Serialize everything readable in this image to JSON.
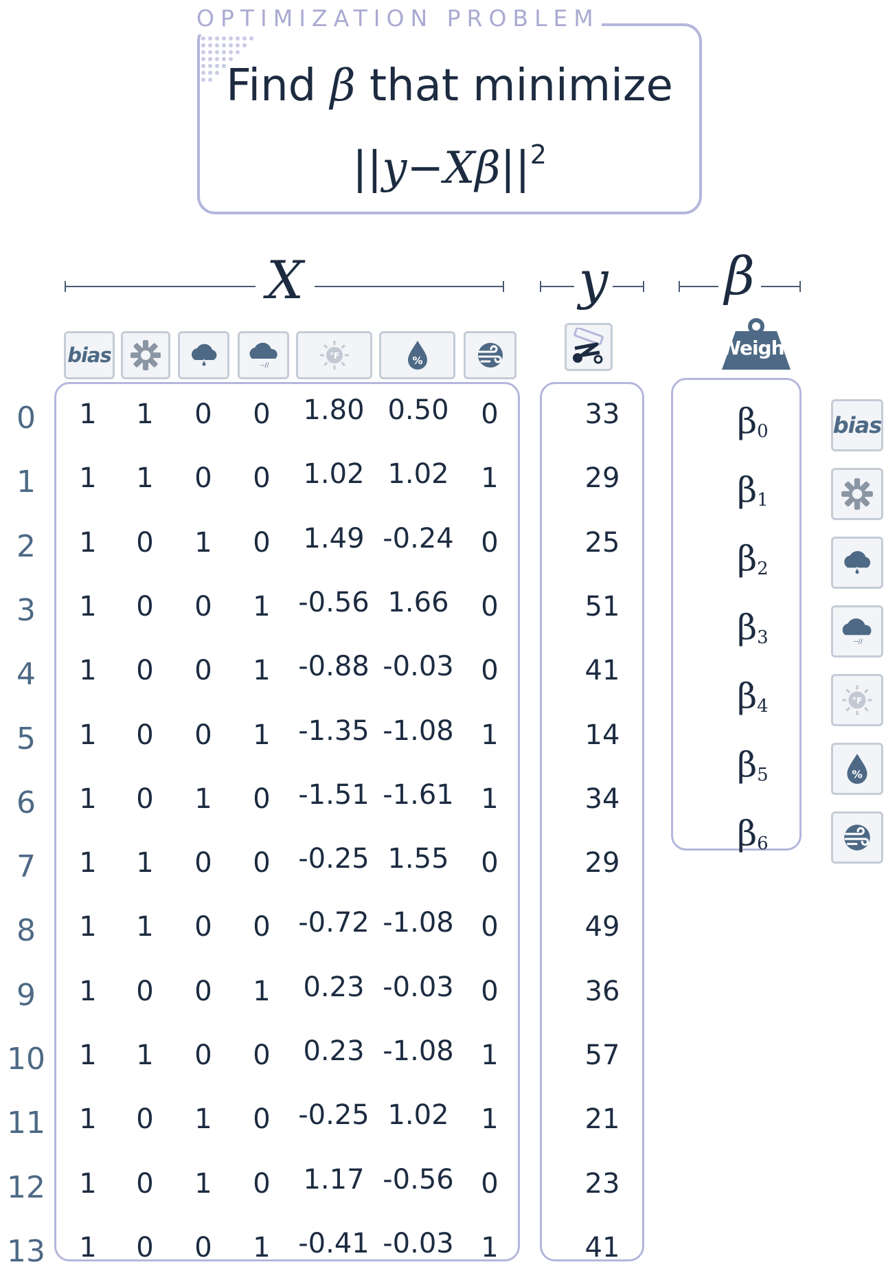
{
  "header": {
    "label": "OPTIMIZATION PROBLEM",
    "line1_pre": "Find ",
    "beta_symbol": "β",
    "line1_post": " that minimize",
    "objective_open": "||",
    "objective_y": "y",
    "objective_minus": "−",
    "objective_X": "X",
    "objective_beta": "β",
    "objective_close": "||",
    "objective_power": "2"
  },
  "headings": {
    "X": "X",
    "y": "y",
    "beta": "β"
  },
  "weight_label": "Weight",
  "features": [
    {
      "name": "bias",
      "icon": "bias-text"
    },
    {
      "name": "sunny",
      "icon": "sun-gear-icon"
    },
    {
      "name": "rainy",
      "icon": "cloud-rain-icon"
    },
    {
      "name": "windy-cloud",
      "icon": "cloud-wind-icon"
    },
    {
      "name": "temperature",
      "icon": "thermometer-sun-icon"
    },
    {
      "name": "humidity",
      "icon": "humidity-drop-icon"
    },
    {
      "name": "wind",
      "icon": "wind-globe-icon"
    }
  ],
  "bias_text": "bias",
  "row_indices": [
    "0",
    "1",
    "2",
    "3",
    "4",
    "5",
    "6",
    "7",
    "8",
    "9",
    "10",
    "11",
    "12",
    "13"
  ],
  "X": [
    [
      "1",
      "1",
      "0",
      "0",
      "1.80",
      "0.50",
      "0"
    ],
    [
      "1",
      "1",
      "0",
      "0",
      "1.02",
      "1.02",
      "1"
    ],
    [
      "1",
      "0",
      "1",
      "0",
      "1.49",
      "-0.24",
      "0"
    ],
    [
      "1",
      "0",
      "0",
      "1",
      "-0.56",
      "1.66",
      "0"
    ],
    [
      "1",
      "0",
      "0",
      "1",
      "-0.88",
      "-0.03",
      "0"
    ],
    [
      "1",
      "0",
      "0",
      "1",
      "-1.35",
      "-1.08",
      "1"
    ],
    [
      "1",
      "0",
      "1",
      "0",
      "-1.51",
      "-1.61",
      "1"
    ],
    [
      "1",
      "1",
      "0",
      "0",
      "-0.25",
      "1.55",
      "0"
    ],
    [
      "1",
      "1",
      "0",
      "0",
      "-0.72",
      "-1.08",
      "0"
    ],
    [
      "1",
      "0",
      "0",
      "1",
      "0.23",
      "-0.03",
      "0"
    ],
    [
      "1",
      "1",
      "0",
      "0",
      "0.23",
      "-1.08",
      "1"
    ],
    [
      "1",
      "0",
      "1",
      "0",
      "-0.25",
      "1.02",
      "1"
    ],
    [
      "1",
      "0",
      "1",
      "0",
      "1.17",
      "-0.56",
      "0"
    ],
    [
      "1",
      "0",
      "0",
      "1",
      "-0.41",
      "-0.03",
      "1"
    ]
  ],
  "y": [
    "33",
    "29",
    "25",
    "51",
    "41",
    "14",
    "34",
    "29",
    "49",
    "36",
    "57",
    "21",
    "23",
    "41"
  ],
  "betas": [
    {
      "sym": "β",
      "sub": "0"
    },
    {
      "sym": "β",
      "sub": "1"
    },
    {
      "sym": "β",
      "sub": "2"
    },
    {
      "sym": "β",
      "sub": "3"
    },
    {
      "sym": "β",
      "sub": "4"
    },
    {
      "sym": "β",
      "sub": "5"
    },
    {
      "sym": "β",
      "sub": "6"
    }
  ],
  "colors": {
    "text": "#1c2b40",
    "accent_border": "#b4b6dc",
    "icon": "#4d6985",
    "index": "#4d6985",
    "tile_bg": "#f2f4f7"
  }
}
